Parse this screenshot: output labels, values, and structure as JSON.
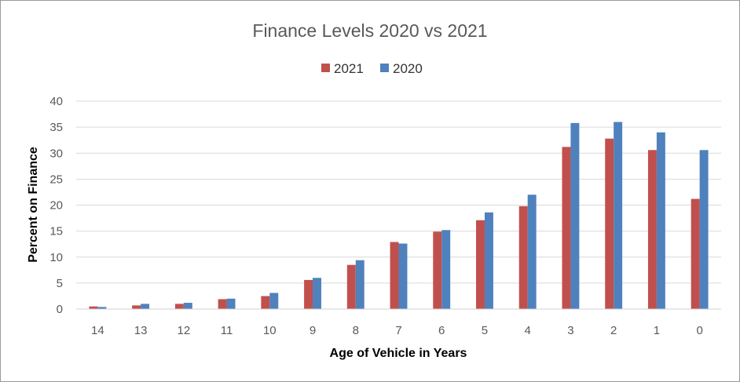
{
  "chart_data": {
    "type": "bar",
    "title": "Finance Levels 2020 vs 2021",
    "xlabel": "Age of Vehicle in Years",
    "ylabel": "Percent on Finance",
    "ylim": [
      0,
      40
    ],
    "yticks": [
      0,
      5,
      10,
      15,
      20,
      25,
      30,
      35,
      40
    ],
    "grid": true,
    "legend_position": "top-center",
    "categories": [
      "14",
      "13",
      "12",
      "11",
      "10",
      "9",
      "8",
      "7",
      "6",
      "5",
      "4",
      "3",
      "2",
      "1",
      "0"
    ],
    "series": [
      {
        "name": "2021",
        "color": "#c0504d",
        "values": [
          0.5,
          0.7,
          1.0,
          1.9,
          2.5,
          5.6,
          8.5,
          12.9,
          14.9,
          17.1,
          19.8,
          31.2,
          32.8,
          30.6,
          21.2
        ]
      },
      {
        "name": "2020",
        "color": "#4f81bd",
        "values": [
          0.4,
          1.0,
          1.2,
          2.0,
          3.1,
          6.0,
          9.4,
          12.6,
          15.2,
          18.6,
          22.0,
          35.8,
          36.0,
          34.0,
          30.6
        ]
      }
    ]
  }
}
